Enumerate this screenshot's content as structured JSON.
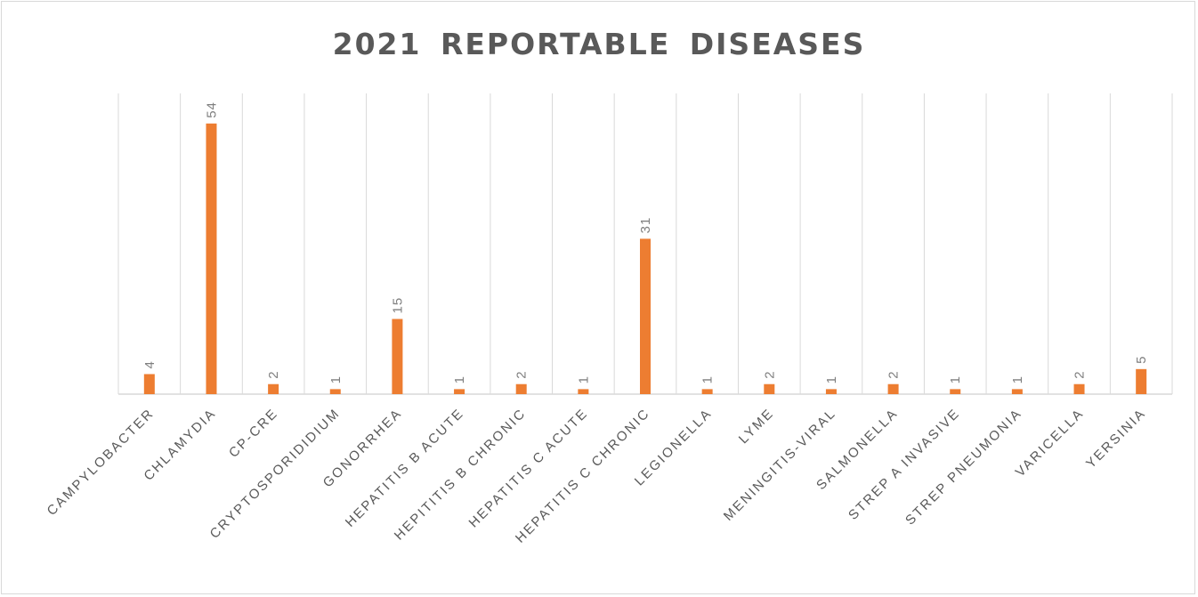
{
  "chart_data": {
    "type": "bar",
    "title": "2021 REPORTABLE  DISEASES",
    "categories": [
      "CAMPYLOBACTER",
      "CHLAMYDIA",
      "CP-CRE",
      "CRYPTOSPORIDIDIUM",
      "GONORRHEA",
      "HEPATITIS B ACUTE",
      "HEPITITIS B CHRONIC",
      "HEPATITIS C ACUTE",
      "HEPATITIS C CHRONIC",
      "LEGIONELLA",
      "LYME",
      "MENINGITIS-VIRAL",
      "SALMONELLA",
      "STREP A INVASIVE",
      "STREP PNEUMONIA",
      "VARICELLA",
      "YERSINIA"
    ],
    "values": [
      4,
      54,
      2,
      1,
      15,
      1,
      2,
      1,
      31,
      1,
      2,
      1,
      2,
      1,
      1,
      2,
      5
    ],
    "ylim": [
      0,
      60
    ],
    "grid": "vertical",
    "legend": "none",
    "colors": {
      "bar": "#ED7D31",
      "grid": "#d9d9d9",
      "label": "#595959"
    }
  }
}
